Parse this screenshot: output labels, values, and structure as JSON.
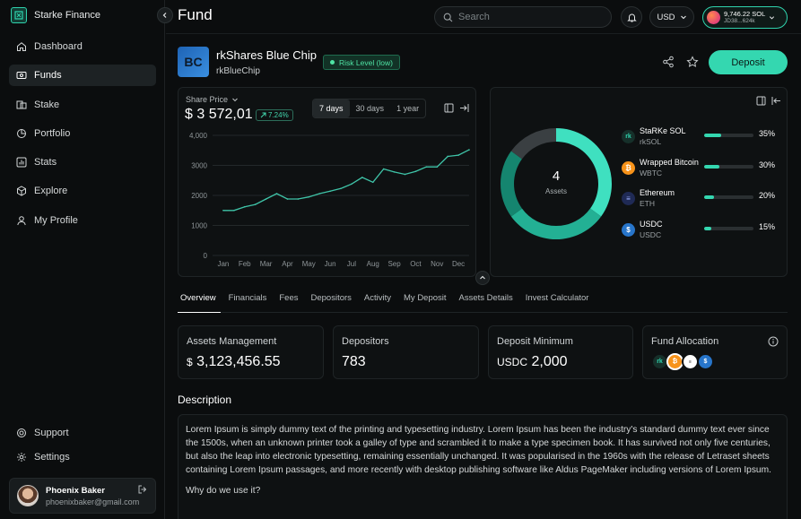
{
  "app": {
    "name": "Starke Finance"
  },
  "sidebar": {
    "items": [
      {
        "label": "Dashboard",
        "icon": "home-icon"
      },
      {
        "label": "Funds",
        "icon": "funds-icon",
        "active": true
      },
      {
        "label": "Stake",
        "icon": "stake-icon"
      },
      {
        "label": "Portfolio",
        "icon": "portfolio-icon"
      },
      {
        "label": "Stats",
        "icon": "stats-icon"
      },
      {
        "label": "Explore",
        "icon": "explore-icon"
      },
      {
        "label": "My Profile",
        "icon": "profile-icon"
      }
    ],
    "bottom": [
      {
        "label": "Support",
        "icon": "support-icon"
      },
      {
        "label": "Settings",
        "icon": "settings-icon"
      }
    ],
    "user": {
      "name": "Phoenix Baker",
      "email": "phoenixbaker@gmail.com"
    }
  },
  "header": {
    "title": "Fund",
    "search_placeholder": "Search",
    "currency": "USD",
    "wallet": {
      "balance": "9,746.22 SOL",
      "address": "JD38...624k"
    }
  },
  "fund": {
    "logo_text": "BC",
    "name": "rkShares Blue Chip",
    "ticker": "rkBlueChip",
    "risk": "Risk Level (low)",
    "deposit_label": "Deposit"
  },
  "price": {
    "label": "Share Price",
    "value": "$ 3 572,01",
    "change": "7.24%",
    "ranges": [
      "7 days",
      "30 days",
      "1 year"
    ]
  },
  "chart_data": {
    "type": "line",
    "title": "Share Price",
    "categories": [
      "Jan",
      "Feb",
      "Mar",
      "Apr",
      "May",
      "Jun",
      "Jul",
      "Aug",
      "Sep",
      "Oct",
      "Nov",
      "Dec"
    ],
    "x": [
      0,
      0.5,
      1,
      1.5,
      2,
      2.5,
      3,
      3.5,
      4,
      4.5,
      5,
      5.5,
      6,
      6.5,
      7,
      7.5,
      8,
      8.5,
      9,
      9.5,
      10,
      10.5,
      11,
      11.5
    ],
    "values": [
      1500,
      1500,
      1620,
      1700,
      1880,
      2060,
      1880,
      1880,
      1950,
      2060,
      2140,
      2230,
      2380,
      2600,
      2440,
      2880,
      2780,
      2700,
      2800,
      2950,
      2950,
      3300,
      3340,
      3520
    ],
    "yticks": [
      0,
      1000,
      2000,
      3000,
      4000
    ],
    "ytick_labels": [
      "0",
      "1000",
      "2000",
      "3000",
      "4,000"
    ],
    "ylim": [
      0,
      4000
    ],
    "grid": true,
    "color": "#3fc4a8"
  },
  "allocation": {
    "count": "4",
    "count_label": "Assets",
    "assets": [
      {
        "name": "StaRKe SOL",
        "symbol": "rkSOL",
        "pct": "35%",
        "value": 35,
        "icon": "rk-icon",
        "color": "#2fd3ad"
      },
      {
        "name": "Wrapped Bitcoin",
        "symbol": "WBTC",
        "pct": "30%",
        "value": 30,
        "icon": "bitcoin-icon",
        "color": "#f7931a"
      },
      {
        "name": "Ethereum",
        "symbol": "ETH",
        "pct": "20%",
        "value": 20,
        "icon": "ethereum-icon",
        "color": "#3a4fd0"
      },
      {
        "name": "USDC",
        "symbol": "USDC",
        "pct": "15%",
        "value": 15,
        "icon": "usdc-icon",
        "color": "#2775ca"
      }
    ]
  },
  "tabs": [
    "Overview",
    "Financials",
    "Fees",
    "Depositors",
    "Activity",
    "My Deposit",
    "Assets Details",
    "Invest Calculator"
  ],
  "stats": {
    "assets_management": {
      "label": "Assets Management",
      "prefix": "$",
      "value": "3,123,456.55"
    },
    "depositors": {
      "label": "Depositors",
      "value": "783"
    },
    "deposit_minimum": {
      "label": "Deposit Minimum",
      "prefix": "USDC",
      "value": "2,000"
    },
    "fund_allocation": {
      "label": "Fund Allocation"
    }
  },
  "description": {
    "title": "Description",
    "text": "Lorem Ipsum is simply dummy text of the printing and typesetting industry. Lorem Ipsum has been the industry's standard dummy text ever since the 1500s, when an unknown printer took a galley of type and scrambled it to make a type specimen book. It has survived not only five centuries, but also the leap into electronic typesetting, remaining essentially unchanged. It was popularised in the 1960s with the release of Letraset sheets containing Lorem Ipsum passages, and more recently with desktop publishing software like Aldus PageMaker including versions of Lorem Ipsum.",
    "subheading": "Why do we use it?"
  }
}
